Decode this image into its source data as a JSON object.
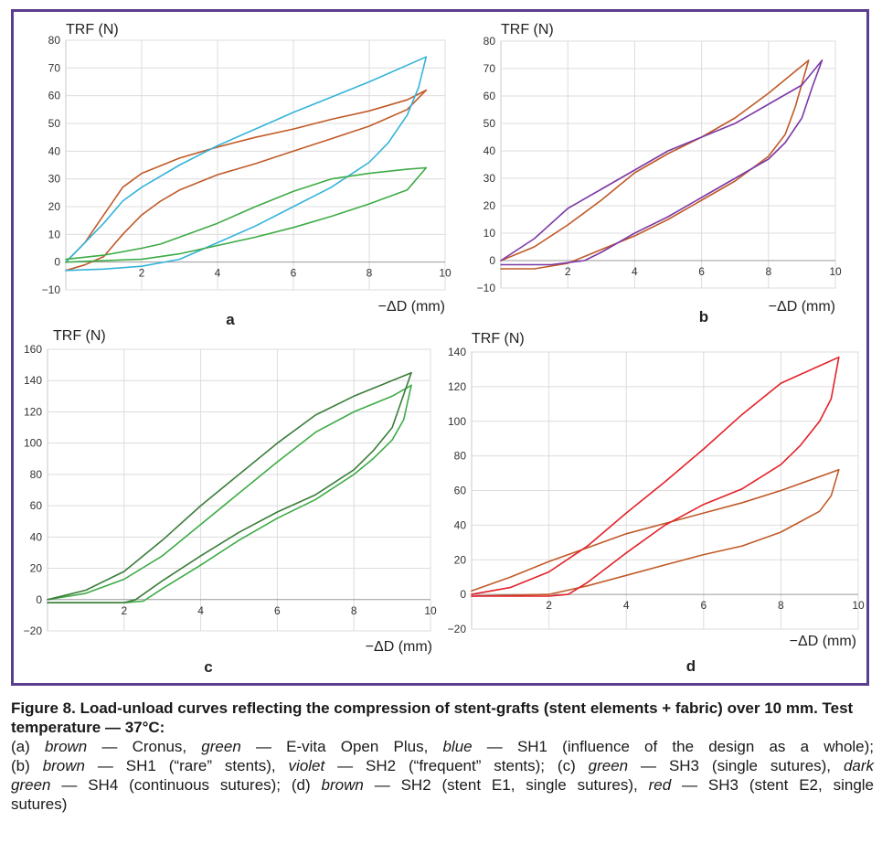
{
  "figure": {
    "caption_title": "Figure 8. Load-unload curves reflecting the compression of stent-grafts (stent elements + fabric) over 10 mm. Test temperature — 37°C:",
    "caption_lines": [
      [
        {
          "t": "(a) ",
          "i": false
        },
        {
          "t": "brown",
          "i": true
        },
        {
          "t": " — Cronus, ",
          "i": false
        },
        {
          "t": "green",
          "i": true
        },
        {
          "t": " — E-vita Open Plus, ",
          "i": false
        },
        {
          "t": "blue",
          "i": true
        },
        {
          "t": " — SH1 (influence of the design as a whole);",
          "i": false
        }
      ],
      [
        {
          "t": "(b) ",
          "i": false
        },
        {
          "t": "brown",
          "i": true
        },
        {
          "t": " — SH1 (“rare” stents), ",
          "i": false
        },
        {
          "t": "violet",
          "i": true
        },
        {
          "t": " — SH2 (“frequent” stents); (c) ",
          "i": false
        },
        {
          "t": "green",
          "i": true
        },
        {
          "t": " — SH3 (single sutures), ",
          "i": false
        },
        {
          "t": "dark",
          "i": true
        }
      ],
      [
        {
          "t": "green",
          "i": true
        },
        {
          "t": " — SH4 (continuous sutures); (d) ",
          "i": false
        },
        {
          "t": "brown",
          "i": true
        },
        {
          "t": " — SH2 (stent E1, single sutures), ",
          "i": false
        },
        {
          "t": "red",
          "i": true
        },
        {
          "t": " — SH3 (stent E2, single",
          "i": false
        }
      ],
      [
        {
          "t": "sutures)",
          "i": false
        }
      ]
    ]
  },
  "chart_data": [
    {
      "panel": "a",
      "type": "line",
      "ylabel": "TRF (N)",
      "xlabel": "−ΔD (mm)",
      "xlim": [
        0,
        10
      ],
      "ylim": [
        -10,
        80
      ],
      "xticks": [
        2,
        4,
        6,
        8,
        10
      ],
      "yticks": [
        -10,
        0,
        10,
        20,
        30,
        40,
        50,
        60,
        70,
        80
      ],
      "ytick_labels": [
        "−10",
        "0",
        "10",
        "20",
        "30",
        "40",
        "50",
        "60",
        "70",
        "80"
      ],
      "grid": true,
      "series": [
        {
          "color": "#c05a28",
          "load": [
            [
              0,
              -3
            ],
            [
              0.5,
              -1
            ],
            [
              1,
              2
            ],
            [
              1.5,
              10
            ],
            [
              2,
              17
            ],
            [
              2.5,
              22
            ],
            [
              3,
              26
            ],
            [
              4,
              31.5
            ],
            [
              5,
              35.5
            ],
            [
              6,
              40
            ],
            [
              7,
              44.5
            ],
            [
              8,
              49
            ],
            [
              9,
              55
            ],
            [
              9.5,
              62
            ]
          ],
          "unload": [
            [
              9.5,
              62
            ],
            [
              9,
              58.5
            ],
            [
              8,
              54.5
            ],
            [
              7,
              51.5
            ],
            [
              6,
              48
            ],
            [
              5,
              45
            ],
            [
              4,
              41.5
            ],
            [
              3,
              37.5
            ],
            [
              2,
              32
            ],
            [
              1.5,
              27
            ],
            [
              1,
              17
            ],
            [
              0.5,
              7
            ],
            [
              0,
              0
            ]
          ]
        },
        {
          "color": "#34b3d9",
          "load": [
            [
              0,
              -3
            ],
            [
              1,
              -2.5
            ],
            [
              2,
              -1.5
            ],
            [
              3,
              1
            ],
            [
              4,
              7
            ],
            [
              5,
              13
            ],
            [
              6,
              20
            ],
            [
              7,
              27
            ],
            [
              8,
              36
            ],
            [
              8.5,
              43
            ],
            [
              9,
              53
            ],
            [
              9.3,
              63
            ],
            [
              9.5,
              74
            ]
          ],
          "unload": [
            [
              9.5,
              74
            ],
            [
              9,
              71
            ],
            [
              8,
              65
            ],
            [
              7,
              59.5
            ],
            [
              6,
              54
            ],
            [
              5,
              48
            ],
            [
              4,
              42
            ],
            [
              3,
              35
            ],
            [
              2,
              27
            ],
            [
              1.5,
              22
            ],
            [
              1,
              14
            ],
            [
              0.5,
              7
            ],
            [
              0,
              0
            ]
          ]
        },
        {
          "color": "#3dab46",
          "load": [
            [
              0,
              0
            ],
            [
              1,
              0.5
            ],
            [
              2,
              1
            ],
            [
              3,
              3
            ],
            [
              4,
              6
            ],
            [
              5,
              9
            ],
            [
              6,
              12.5
            ],
            [
              7,
              16.5
            ],
            [
              8,
              21
            ],
            [
              9,
              26
            ],
            [
              9.5,
              34
            ]
          ],
          "unload": [
            [
              9.5,
              34
            ],
            [
              9,
              33.5
            ],
            [
              8,
              32
            ],
            [
              7,
              30
            ],
            [
              6,
              25.5
            ],
            [
              5,
              20
            ],
            [
              4,
              14
            ],
            [
              3,
              9
            ],
            [
              2.5,
              6.5
            ],
            [
              2,
              5
            ],
            [
              1,
              2.5
            ],
            [
              0,
              1
            ]
          ]
        }
      ]
    },
    {
      "panel": "b",
      "type": "line",
      "ylabel": "TRF (N)",
      "xlabel": "−ΔD (mm)",
      "xlim": [
        0,
        10
      ],
      "ylim": [
        -10,
        80
      ],
      "xticks": [
        2,
        4,
        6,
        8,
        10
      ],
      "yticks": [
        -10,
        0,
        10,
        20,
        30,
        40,
        50,
        60,
        70,
        80
      ],
      "ytick_labels": [
        "−10",
        "0",
        "10",
        "20",
        "30",
        "40",
        "50",
        "60",
        "70",
        "80"
      ],
      "grid": true,
      "series": [
        {
          "color": "#c05a28",
          "load": [
            [
              0,
              -3
            ],
            [
              1,
              -3
            ],
            [
              2,
              -1
            ],
            [
              3,
              4
            ],
            [
              4,
              9
            ],
            [
              5,
              15
            ],
            [
              6,
              22
            ],
            [
              7,
              29
            ],
            [
              8,
              38
            ],
            [
              8.5,
              46
            ],
            [
              8.8,
              56
            ],
            [
              9.2,
              73
            ]
          ],
          "unload": [
            [
              9.2,
              73
            ],
            [
              8,
              61
            ],
            [
              7,
              52
            ],
            [
              6,
              45
            ],
            [
              5,
              39
            ],
            [
              4,
              32
            ],
            [
              3,
              22
            ],
            [
              2,
              13
            ],
            [
              1,
              5
            ],
            [
              0,
              0
            ]
          ]
        },
        {
          "color": "#7b3aa6",
          "load": [
            [
              0,
              -1.5
            ],
            [
              1.5,
              -1.5
            ],
            [
              2.5,
              0
            ],
            [
              3,
              3
            ],
            [
              4,
              10
            ],
            [
              5,
              16
            ],
            [
              6,
              23
            ],
            [
              7,
              30
            ],
            [
              8,
              37
            ],
            [
              8.5,
              43
            ],
            [
              9,
              52
            ],
            [
              9.3,
              63
            ],
            [
              9.6,
              73
            ]
          ],
          "unload": [
            [
              9.6,
              73
            ],
            [
              9,
              64
            ],
            [
              8,
              57
            ],
            [
              7,
              50
            ],
            [
              6,
              45
            ],
            [
              5,
              40
            ],
            [
              4,
              33
            ],
            [
              3,
              26
            ],
            [
              2,
              19
            ],
            [
              1,
              8
            ],
            [
              0,
              0
            ]
          ]
        }
      ]
    },
    {
      "panel": "c",
      "type": "line",
      "ylabel": "TRF (N)",
      "xlabel": "−ΔD (mm)",
      "xlim": [
        0,
        10
      ],
      "ylim": [
        -20,
        160
      ],
      "xticks": [
        2,
        4,
        6,
        8,
        10
      ],
      "yticks": [
        -20,
        0,
        20,
        40,
        60,
        80,
        100,
        120,
        140,
        160
      ],
      "ytick_labels": [
        "−20",
        "0",
        "20",
        "40",
        "60",
        "80",
        "100",
        "120",
        "140",
        "160"
      ],
      "grid": true,
      "series": [
        {
          "color": "#3dab46",
          "load": [
            [
              0,
              -2
            ],
            [
              2,
              -2
            ],
            [
              2.5,
              -1
            ],
            [
              3,
              7
            ],
            [
              4,
              22
            ],
            [
              5,
              38
            ],
            [
              6,
              52
            ],
            [
              7,
              64
            ],
            [
              8,
              80
            ],
            [
              8.5,
              90
            ],
            [
              9,
              102
            ],
            [
              9.3,
              115
            ],
            [
              9.5,
              137
            ]
          ],
          "unload": [
            [
              9.5,
              137
            ],
            [
              9,
              130
            ],
            [
              8,
              120
            ],
            [
              7,
              107
            ],
            [
              6,
              88
            ],
            [
              5,
              68
            ],
            [
              4,
              48
            ],
            [
              3,
              28
            ],
            [
              2,
              13
            ],
            [
              1,
              4
            ],
            [
              0,
              0
            ]
          ]
        },
        {
          "color": "#3a7d3a",
          "load": [
            [
              0,
              -2
            ],
            [
              2,
              -2
            ],
            [
              2.3,
              0
            ],
            [
              3,
              12
            ],
            [
              4,
              28
            ],
            [
              5,
              43
            ],
            [
              6,
              56
            ],
            [
              7,
              67
            ],
            [
              8,
              83
            ],
            [
              8.5,
              95
            ],
            [
              9,
              110
            ],
            [
              9.5,
              145
            ]
          ],
          "unload": [
            [
              9.5,
              145
            ],
            [
              8,
              130
            ],
            [
              7,
              118
            ],
            [
              6,
              100
            ],
            [
              5,
              80
            ],
            [
              4,
              60
            ],
            [
              3,
              38
            ],
            [
              2,
              18
            ],
            [
              1,
              6
            ],
            [
              0,
              0
            ]
          ]
        }
      ]
    },
    {
      "panel": "d",
      "type": "line",
      "ylabel": "TRF (N)",
      "xlabel": "−ΔD (mm)",
      "xlim": [
        0,
        10
      ],
      "ylim": [
        -20,
        140
      ],
      "xticks": [
        2,
        4,
        6,
        8,
        10
      ],
      "yticks": [
        -20,
        0,
        20,
        40,
        60,
        80,
        100,
        120,
        140
      ],
      "ytick_labels": [
        "−20",
        "0",
        "20",
        "40",
        "60",
        "80",
        "100",
        "120",
        "140"
      ],
      "grid": true,
      "series": [
        {
          "color": "#c05a28",
          "load": [
            [
              0,
              -1
            ],
            [
              2,
              0
            ],
            [
              3,
              5
            ],
            [
              4,
              11
            ],
            [
              5,
              17
            ],
            [
              6,
              23
            ],
            [
              7,
              28
            ],
            [
              8,
              36
            ],
            [
              9,
              48
            ],
            [
              9.3,
              57
            ],
            [
              9.5,
              72
            ]
          ],
          "unload": [
            [
              9.5,
              72
            ],
            [
              8,
              60
            ],
            [
              7,
              53
            ],
            [
              6,
              47
            ],
            [
              5,
              41
            ],
            [
              4,
              35
            ],
            [
              3,
              27
            ],
            [
              2,
              19
            ],
            [
              1,
              10
            ],
            [
              0,
              2
            ]
          ]
        },
        {
          "color": "#e3212a",
          "load": [
            [
              0,
              -1
            ],
            [
              2,
              -1
            ],
            [
              2.5,
              0
            ],
            [
              3,
              7
            ],
            [
              4,
              24
            ],
            [
              5,
              40
            ],
            [
              6,
              52
            ],
            [
              7,
              61
            ],
            [
              8,
              75
            ],
            [
              8.5,
              86
            ],
            [
              9,
              100
            ],
            [
              9.3,
              113
            ],
            [
              9.5,
              137
            ]
          ],
          "unload": [
            [
              9.5,
              137
            ],
            [
              9,
              132
            ],
            [
              8,
              122
            ],
            [
              7,
              104
            ],
            [
              6,
              84
            ],
            [
              5,
              65
            ],
            [
              4,
              47
            ],
            [
              3,
              28
            ],
            [
              2,
              13
            ],
            [
              1,
              4
            ],
            [
              0,
              0
            ]
          ]
        }
      ]
    }
  ]
}
